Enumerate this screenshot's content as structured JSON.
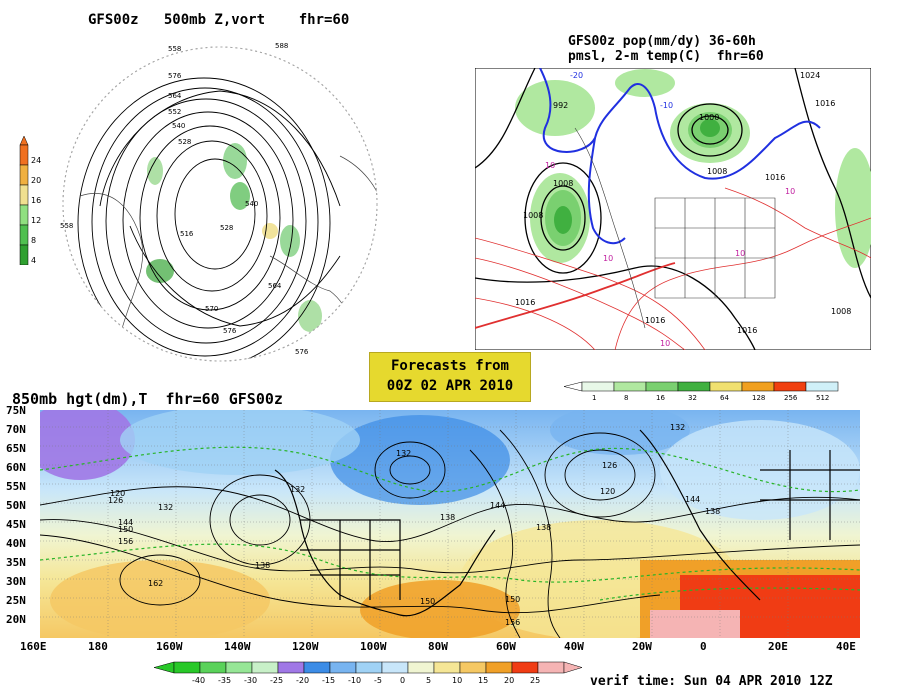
{
  "panel_500mb": {
    "title": "GFS00z   500mb Z,vort    fhr=60",
    "contour_labels": [
      "558",
      "576",
      "564",
      "552",
      "540",
      "528",
      "516",
      "528",
      "540",
      "558",
      "570",
      "576",
      "564",
      "576",
      "588"
    ],
    "colorbar": {
      "ticks": [
        "24",
        "20",
        "16",
        "12",
        "8",
        "4"
      ],
      "colors": [
        "#f07020",
        "#f0b040",
        "#f0e090",
        "#90e080",
        "#50c050",
        "#2fa030"
      ]
    }
  },
  "panel_pop": {
    "title_line1": "GFS00z pop(mm/dy) 36-60h",
    "title_line2": "pmsl, 2-m temp(C)  fhr=60",
    "isobar_labels": [
      "992",
      "1008",
      "1008",
      "1000",
      "1008",
      "1016",
      "1016",
      "1016",
      "1016",
      "1016",
      "1008",
      "1024"
    ],
    "temp_labels": [
      "10",
      "10",
      "10",
      "10",
      "10",
      "-20",
      "-10"
    ],
    "colorbar": {
      "ticks": [
        "1",
        "8",
        "16",
        "32",
        "64",
        "128",
        "256",
        "512"
      ],
      "colors": [
        "#e8f8e8",
        "#b0e8a0",
        "#7ad070",
        "#40b040",
        "#f0e070",
        "#f0a020",
        "#f04010",
        "#d0f0f8"
      ]
    }
  },
  "forecast_box": {
    "line1": "Forecasts from",
    "line2": "00Z 02 APR 2010"
  },
  "panel_850mb": {
    "title": "850mb hgt(dm),T  fhr=60 GFS00z",
    "lat_labels": [
      "75N",
      "70N",
      "65N",
      "60N",
      "55N",
      "50N",
      "45N",
      "40N",
      "35N",
      "30N",
      "25N",
      "20N"
    ],
    "lon_labels": [
      "160E",
      "180",
      "160W",
      "140W",
      "120W",
      "100W",
      "80W",
      "60W",
      "40W",
      "20W",
      "0",
      "20E",
      "40E"
    ],
    "height_labels": [
      "120",
      "126",
      "132",
      "144",
      "150",
      "156",
      "162",
      "138",
      "138",
      "132",
      "126",
      "120",
      "132",
      "138",
      "144",
      "150",
      "156",
      "150",
      "144",
      "138",
      "132"
    ],
    "colorbar": {
      "ticks": [
        "-40",
        "-35",
        "-30",
        "-25",
        "-20",
        "-15",
        "-10",
        "-5",
        "0",
        "5",
        "10",
        "15",
        "20",
        "25"
      ],
      "colors": [
        "#28c828",
        "#5ad25a",
        "#96e696",
        "#c8f0c8",
        "#a078e6",
        "#3c8ce6",
        "#78b4f0",
        "#a0d2f5",
        "#c8e6fa",
        "#f0f5d2",
        "#f5e696",
        "#f5c864",
        "#f0a028",
        "#f03c14",
        "#f5b4b4"
      ]
    }
  },
  "verif": {
    "text": "verif time: Sun 04 APR 2010 12Z"
  }
}
